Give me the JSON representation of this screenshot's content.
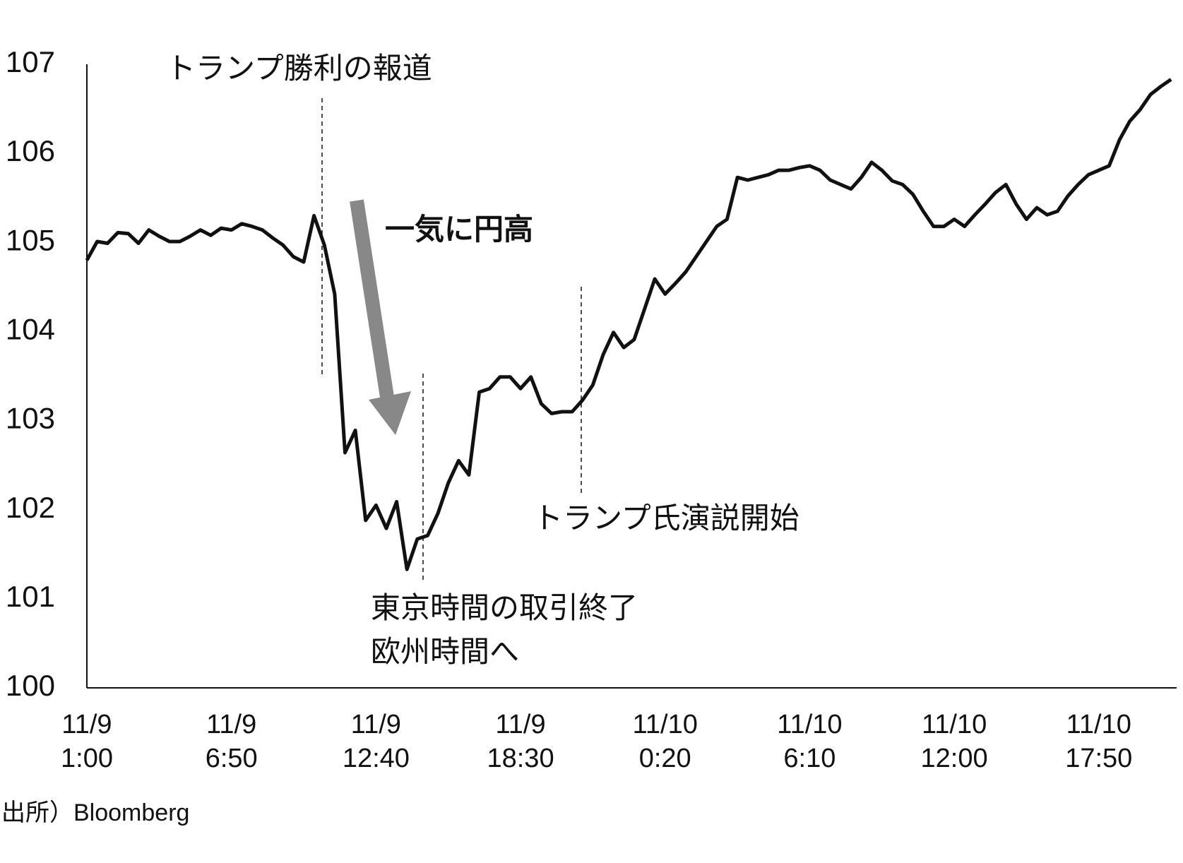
{
  "chart_data": {
    "type": "line",
    "categories": [
      "11/9\n1:00",
      null,
      null,
      null,
      null,
      null,
      null,
      null,
      null,
      null,
      null,
      null,
      null,
      null,
      "11/9\n6:50",
      null,
      null,
      null,
      null,
      null,
      null,
      null,
      null,
      null,
      null,
      null,
      null,
      null,
      "11/9\n12:40",
      null,
      null,
      null,
      null,
      null,
      null,
      null,
      null,
      null,
      null,
      null,
      null,
      null,
      "11/9\n18:30",
      null,
      null,
      null,
      null,
      null,
      null,
      null,
      null,
      null,
      null,
      null,
      null,
      null,
      "11/10\n0:20",
      null,
      null,
      null,
      null,
      null,
      null,
      null,
      null,
      null,
      null,
      null,
      null,
      null,
      "11/10\n6:10",
      null,
      null,
      null,
      null,
      null,
      null,
      null,
      null,
      null,
      null,
      null,
      null,
      null,
      "11/10\n12:00",
      null,
      null,
      null,
      null,
      null,
      null,
      null,
      null,
      null,
      null,
      null,
      null,
      null,
      "11/10\n17:50",
      null,
      null,
      null,
      null,
      null,
      null,
      null
    ],
    "values": [
      104.8,
      105.01,
      104.99,
      105.11,
      105.1,
      104.99,
      105.14,
      105.07,
      105.01,
      105.01,
      105.07,
      105.14,
      105.08,
      105.16,
      105.14,
      105.21,
      105.18,
      105.14,
      105.05,
      104.97,
      104.84,
      104.78,
      105.3,
      104.97,
      104.42,
      102.64,
      102.89,
      101.88,
      102.05,
      101.79,
      102.09,
      101.33,
      101.67,
      101.71,
      101.96,
      102.3,
      102.55,
      102.39,
      103.32,
      103.36,
      103.49,
      103.49,
      103.36,
      103.49,
      103.19,
      103.08,
      103.1,
      103.1,
      103.23,
      103.4,
      103.74,
      103.99,
      103.82,
      103.91,
      104.25,
      104.59,
      104.42,
      104.54,
      104.67,
      104.84,
      105.01,
      105.18,
      105.26,
      105.73,
      105.7,
      105.73,
      105.76,
      105.81,
      105.81,
      105.84,
      105.86,
      105.81,
      105.7,
      105.65,
      105.6,
      105.73,
      105.9,
      105.81,
      105.69,
      105.65,
      105.54,
      105.35,
      105.18,
      105.18,
      105.26,
      105.18,
      105.31,
      105.43,
      105.56,
      105.65,
      105.43,
      105.26,
      105.39,
      105.31,
      105.35,
      105.52,
      105.65,
      105.76,
      105.81,
      105.86,
      106.15,
      106.36,
      106.49,
      106.66,
      106.75,
      106.83
    ],
    "color": "#111111",
    "ylim": [
      100,
      107
    ],
    "yticks": [
      100,
      101,
      102,
      103,
      104,
      105,
      106,
      107
    ],
    "grid": false,
    "annotations": [
      "トランプ勝利の報道",
      "一気に円高",
      "東京時間の取引終了\n欧州時間へ",
      "トランプ氏演説開始"
    ],
    "source": "出所）Bloomberg"
  }
}
